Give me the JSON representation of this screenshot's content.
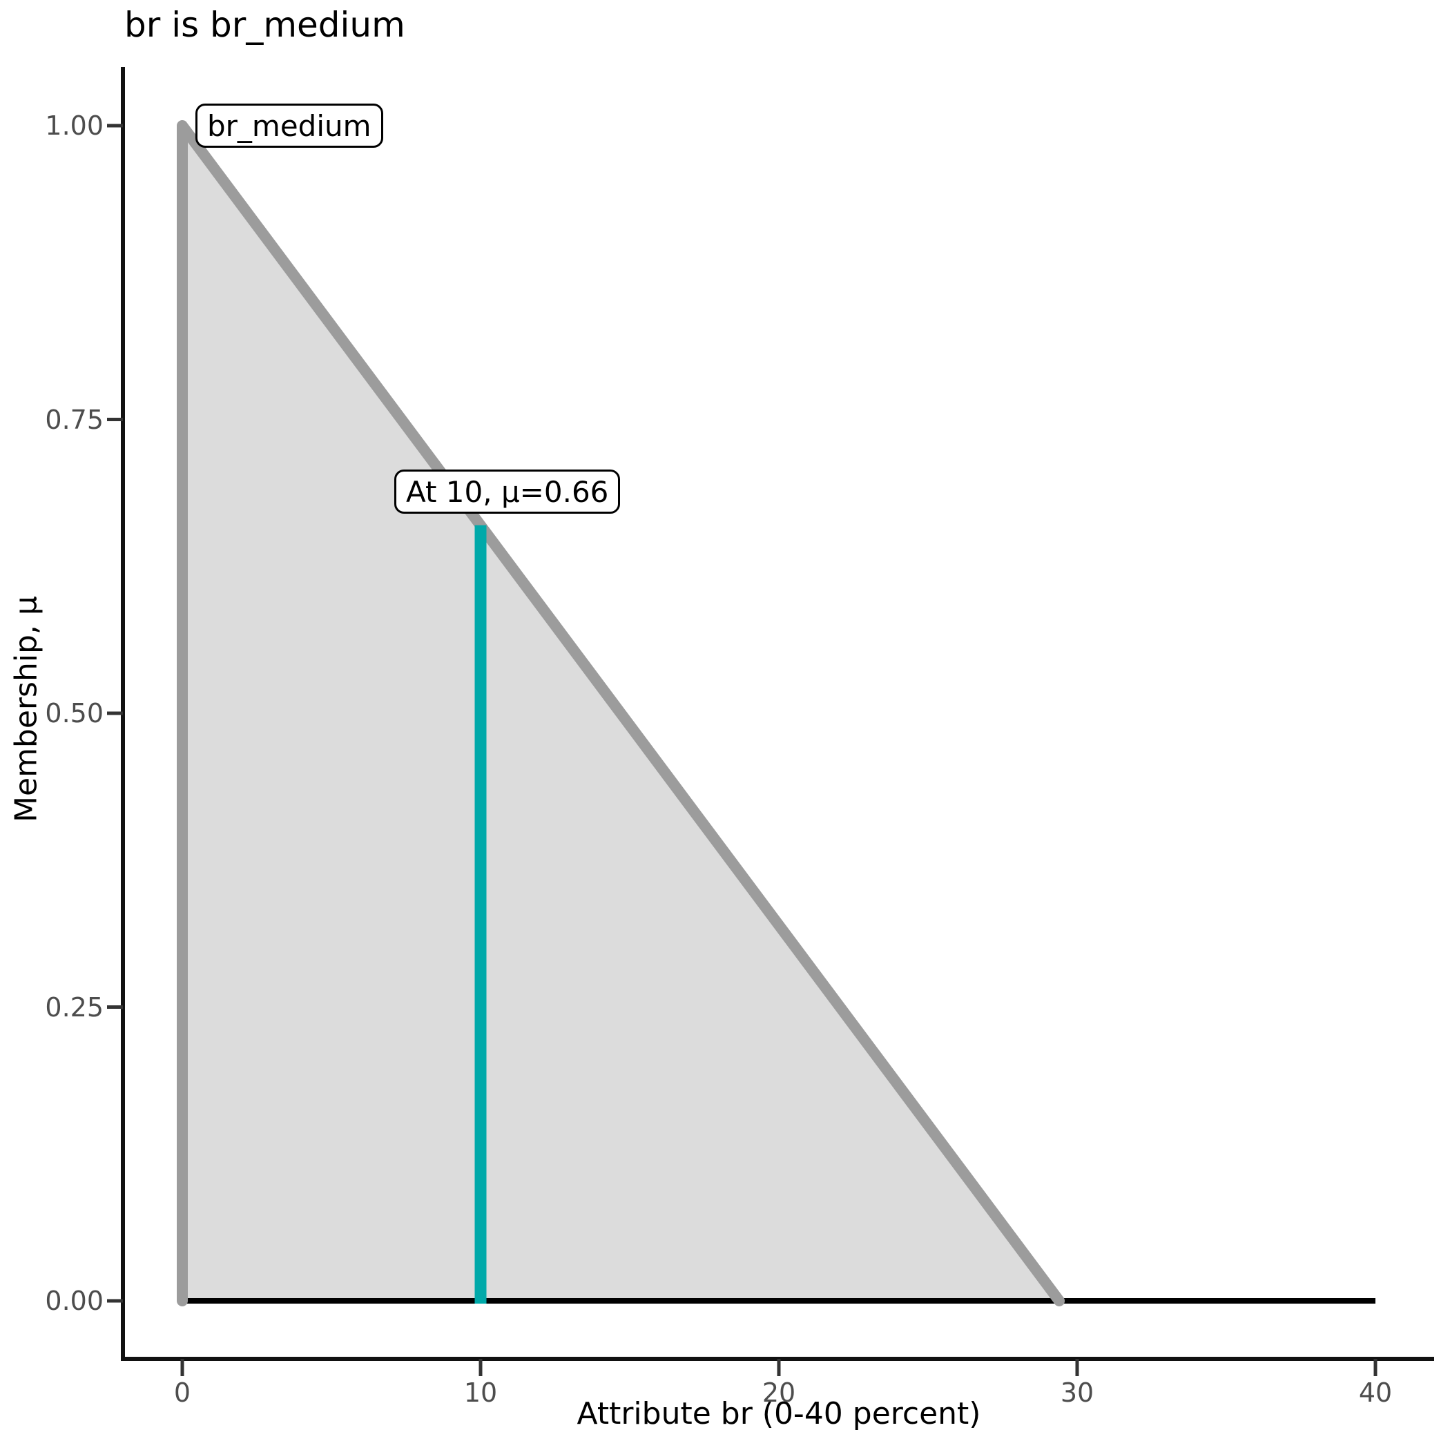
{
  "title": "br is br_medium",
  "chart_data": {
    "type": "area",
    "title": "br is br_medium",
    "xlabel": "Attribute br (0-40 percent)",
    "ylabel": "Membership, μ",
    "xlim": [
      0,
      40
    ],
    "ylim": [
      0,
      1
    ],
    "grid": false,
    "legend": "none",
    "x_ticks": [
      {
        "v": 0,
        "label": "0"
      },
      {
        "v": 10,
        "label": "10"
      },
      {
        "v": 20,
        "label": "20"
      },
      {
        "v": 30,
        "label": "30"
      },
      {
        "v": 40,
        "label": "40"
      }
    ],
    "y_ticks": [
      {
        "v": 0.0,
        "label": "0.00"
      },
      {
        "v": 0.25,
        "label": "0.25"
      },
      {
        "v": 0.5,
        "label": "0.50"
      },
      {
        "v": 0.75,
        "label": "0.75"
      },
      {
        "v": 1.0,
        "label": "1.00"
      }
    ],
    "fuzzy_set": {
      "name": "br_medium",
      "shape": "triangular",
      "outline_points": [
        [
          0,
          0
        ],
        [
          0,
          1
        ],
        [
          29.4,
          0
        ]
      ],
      "baseline": {
        "x_start": 0,
        "x_end": 40,
        "mu": 0
      }
    },
    "highlight": {
      "x": 10,
      "mu": 0.66,
      "label": "At 10, μ=0.66"
    },
    "colors": {
      "fill": "#DCDCDC",
      "outline": "#9C9C9C",
      "highlight": "#00A9A9",
      "baseline": "#000000",
      "axis_line": "#111111",
      "tick_mark": "#333333",
      "tick_text": "#4D4D4D"
    }
  }
}
